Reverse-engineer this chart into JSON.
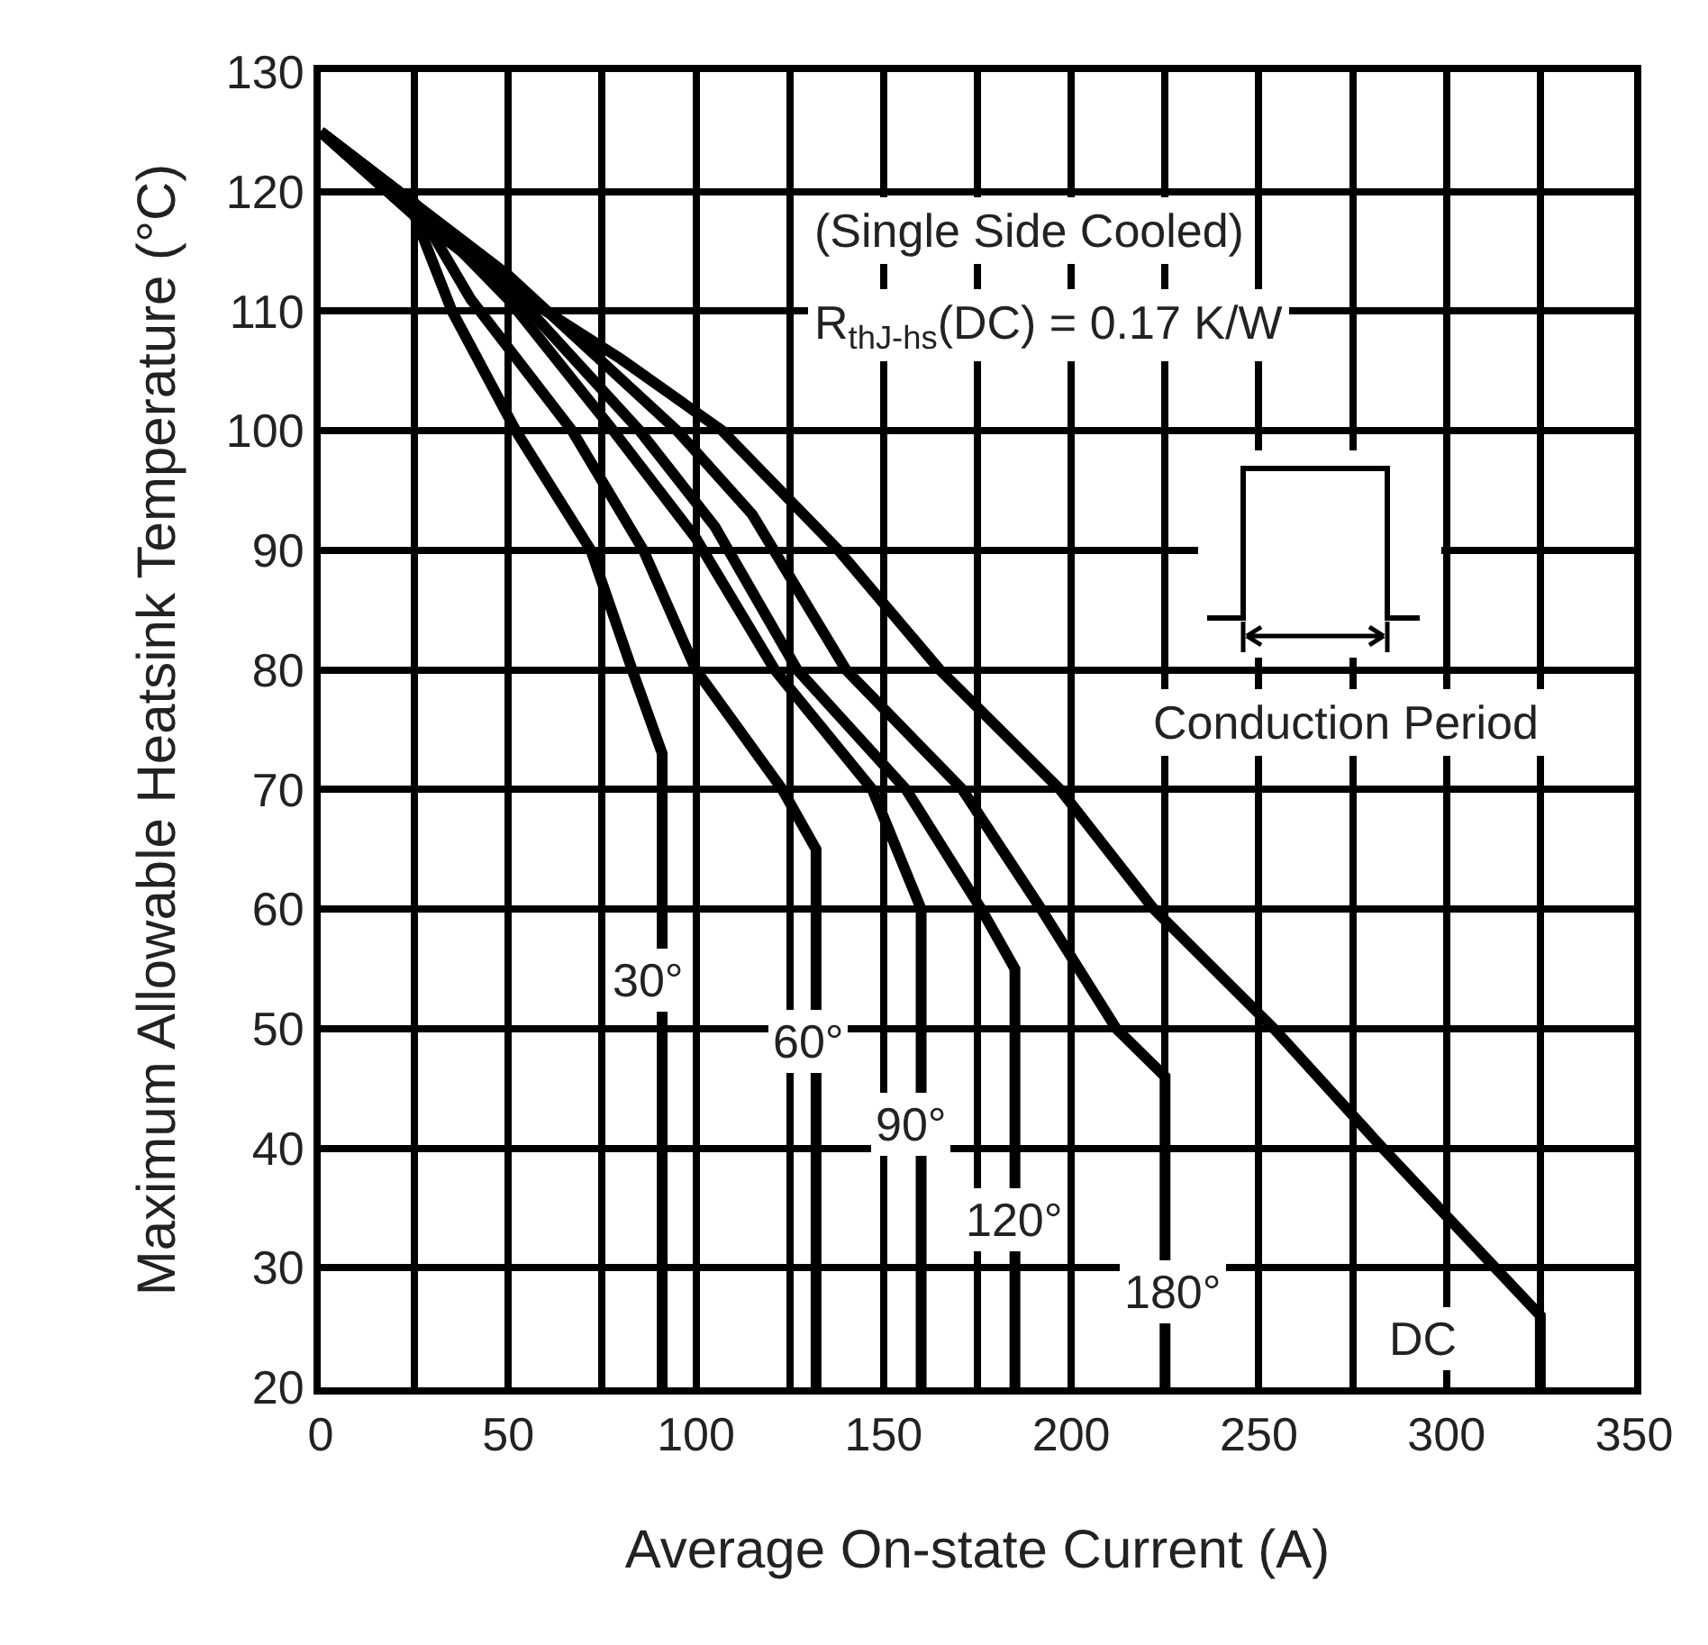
{
  "chart_data": {
    "type": "line",
    "xlabel": "Average On-state Current (A)",
    "ylabel": "Maximum Allowable Heatsink Temperature (°C)",
    "xlim": [
      0,
      350
    ],
    "ylim": [
      20,
      130
    ],
    "xticks": [
      0,
      {
        "value": 25,
        "label": null
      },
      50,
      {
        "value": 75,
        "label": null
      },
      100,
      {
        "value": 125,
        "label": null
      },
      150,
      {
        "value": 175,
        "label": null
      },
      200,
      {
        "value": 225,
        "label": null
      },
      250,
      {
        "value": 275,
        "label": null
      },
      300,
      {
        "value": 325,
        "label": null
      },
      350
    ],
    "yticks": [
      20,
      30,
      40,
      50,
      60,
      70,
      80,
      90,
      100,
      110,
      120,
      130
    ],
    "grid": true,
    "marker": "none",
    "line_style": "solid",
    "series": [
      {
        "color": "#000000",
        "x": [
          0,
          25,
          35,
          52,
          72,
          83,
          91,
          91
        ],
        "values": [
          125,
          118,
          110,
          100,
          90,
          80,
          73,
          20
        ]
      },
      {
        "color": "#000000",
        "x": [
          0,
          25,
          40,
          67,
          86,
          100,
          123,
          132,
          132
        ],
        "values": [
          125,
          119,
          111,
          100,
          90,
          80,
          70,
          65,
          20
        ]
      },
      {
        "color": "#000000",
        "x": [
          0,
          25,
          50,
          78,
          100,
          121,
          147,
          160,
          160
        ],
        "values": [
          125,
          119,
          111,
          100,
          91,
          80,
          70,
          60,
          20
        ]
      },
      {
        "color": "#000000",
        "x": [
          0,
          25,
          50,
          85,
          105,
          127,
          156,
          176,
          185,
          185
        ],
        "values": [
          125,
          119,
          112,
          100,
          92,
          80,
          70,
          60,
          55,
          20
        ]
      },
      {
        "color": "#000000",
        "x": [
          0,
          25,
          50,
          95,
          115,
          140,
          171,
          192,
          212,
          225,
          225
        ],
        "values": [
          125,
          119,
          113,
          100,
          93,
          80,
          70,
          60,
          50,
          46,
          20
        ]
      },
      {
        "color": "#000000",
        "x": [
          0,
          25,
          50,
          80,
          107,
          138,
          165,
          197,
          222,
          254,
          283,
          313,
          325,
          325
        ],
        "values": [
          125,
          118,
          112,
          106,
          100,
          90,
          80,
          70,
          60,
          50,
          40,
          30,
          26,
          20
        ]
      }
    ],
    "annotations": [
      "(Single Side Cooled)",
      "R$_{thJ-hs}$(DC) = 0.17 K/W",
      "Conduction Period",
      {
        "text": "30°",
        "x": 87,
        "y": 54
      },
      {
        "text": "60°",
        "x": 130,
        "y": 49
      },
      {
        "text": "90°",
        "x": 157,
        "y": 42
      },
      {
        "text": "120°",
        "x": 185,
        "y": 34
      },
      {
        "text": "180°",
        "x": 227,
        "y": 28
      },
      {
        "text": "DC",
        "x": 294,
        "y": 24
      }
    ]
  }
}
